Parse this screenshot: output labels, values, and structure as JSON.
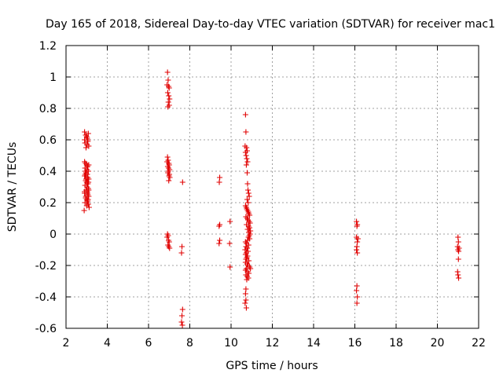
{
  "chart_data": {
    "type": "scatter",
    "title": "Day 165 of 2018, Sidereal Day-to-day VTEC variation (SDTVAR) for receiver mac1",
    "xlabel": "GPS time / hours",
    "ylabel": "SDTVAR / TECUs",
    "xlim": [
      2,
      22
    ],
    "ylim": [
      -0.6,
      1.2
    ],
    "xticks": [
      "2",
      "4",
      "6",
      "8",
      "10",
      "12",
      "14",
      "16",
      "18",
      "20",
      "22"
    ],
    "yticks": [
      "-0.6",
      "-0.4",
      "-0.2",
      "0",
      "0.2",
      "0.4",
      "0.6",
      "0.8",
      "1",
      "1.2"
    ],
    "grid": true,
    "marker": "+",
    "color": "#e00000",
    "series": [
      {
        "name": "SDTVAR",
        "points": [
          [
            2.9,
            0.65
          ],
          [
            2.95,
            0.63
          ],
          [
            3.0,
            0.62
          ],
          [
            3.05,
            0.6
          ],
          [
            2.92,
            0.58
          ],
          [
            3.02,
            0.57
          ],
          [
            3.08,
            0.64
          ],
          [
            2.97,
            0.55
          ],
          [
            3.03,
            0.61
          ],
          [
            2.9,
            0.6
          ],
          [
            3.06,
            0.59
          ],
          [
            3.1,
            0.56
          ],
          [
            2.9,
            0.46
          ],
          [
            2.95,
            0.45
          ],
          [
            3.0,
            0.44
          ],
          [
            3.05,
            0.43
          ],
          [
            3.1,
            0.44
          ],
          [
            2.92,
            0.42
          ],
          [
            3.02,
            0.41
          ],
          [
            3.08,
            0.4
          ],
          [
            2.97,
            0.39
          ],
          [
            3.03,
            0.38
          ],
          [
            2.9,
            0.37
          ],
          [
            3.06,
            0.36
          ],
          [
            3.1,
            0.35
          ],
          [
            2.95,
            0.34
          ],
          [
            3.0,
            0.33
          ],
          [
            3.05,
            0.32
          ],
          [
            2.92,
            0.31
          ],
          [
            3.02,
            0.3
          ],
          [
            3.08,
            0.29
          ],
          [
            2.97,
            0.28
          ],
          [
            3.03,
            0.27
          ],
          [
            2.9,
            0.26
          ],
          [
            3.06,
            0.25
          ],
          [
            3.1,
            0.24
          ],
          [
            2.95,
            0.23
          ],
          [
            3.0,
            0.22
          ],
          [
            3.05,
            0.21
          ],
          [
            2.92,
            0.2
          ],
          [
            3.02,
            0.2
          ],
          [
            3.08,
            0.19
          ],
          [
            2.97,
            0.35
          ],
          [
            3.03,
            0.36
          ],
          [
            2.9,
            0.27
          ],
          [
            3.06,
            0.32
          ],
          [
            3.1,
            0.28
          ],
          [
            2.93,
            0.38
          ],
          [
            3.04,
            0.26
          ],
          [
            3.07,
            0.22
          ],
          [
            2.96,
            0.24
          ],
          [
            2.88,
            0.15
          ],
          [
            3.12,
            0.17
          ],
          [
            3.0,
            0.18
          ],
          [
            2.94,
            0.4
          ],
          [
            3.09,
            0.33
          ],
          [
            6.92,
            1.03
          ],
          [
            6.95,
            0.98
          ],
          [
            6.9,
            0.95
          ],
          [
            6.97,
            0.94
          ],
          [
            7.0,
            0.93
          ],
          [
            6.93,
            0.9
          ],
          [
            6.98,
            0.88
          ],
          [
            7.02,
            0.86
          ],
          [
            6.96,
            0.84
          ],
          [
            7.0,
            0.82
          ],
          [
            6.94,
            0.81
          ],
          [
            6.92,
            0.49
          ],
          [
            6.95,
            0.47
          ],
          [
            6.9,
            0.46
          ],
          [
            6.98,
            0.45
          ],
          [
            7.0,
            0.44
          ],
          [
            6.93,
            0.43
          ],
          [
            6.97,
            0.42
          ],
          [
            7.02,
            0.41
          ],
          [
            6.96,
            0.4
          ],
          [
            6.94,
            0.39
          ],
          [
            7.01,
            0.38
          ],
          [
            6.99,
            0.37
          ],
          [
            7.03,
            0.36
          ],
          [
            6.98,
            0.34
          ],
          [
            6.92,
            0.0
          ],
          [
            6.95,
            -0.01
          ],
          [
            6.9,
            -0.02
          ],
          [
            6.97,
            -0.04
          ],
          [
            7.0,
            -0.05
          ],
          [
            6.94,
            -0.07
          ],
          [
            6.98,
            -0.08
          ],
          [
            7.02,
            -0.09
          ],
          [
            7.65,
            0.33
          ],
          [
            7.62,
            -0.08
          ],
          [
            7.6,
            -0.12
          ],
          [
            7.65,
            -0.48
          ],
          [
            7.62,
            -0.52
          ],
          [
            7.6,
            -0.56
          ],
          [
            7.64,
            -0.58
          ],
          [
            9.45,
            0.36
          ],
          [
            9.43,
            0.33
          ],
          [
            9.45,
            0.06
          ],
          [
            9.42,
            0.05
          ],
          [
            9.45,
            -0.04
          ],
          [
            9.42,
            -0.06
          ],
          [
            9.95,
            0.08
          ],
          [
            9.93,
            -0.06
          ],
          [
            9.95,
            -0.21
          ],
          [
            10.7,
            0.76
          ],
          [
            10.72,
            0.65
          ],
          [
            10.68,
            0.56
          ],
          [
            10.75,
            0.55
          ],
          [
            10.78,
            0.53
          ],
          [
            10.7,
            0.52
          ],
          [
            10.73,
            0.5
          ],
          [
            10.76,
            0.48
          ],
          [
            10.8,
            0.46
          ],
          [
            10.74,
            0.44
          ],
          [
            10.78,
            0.39
          ],
          [
            10.8,
            0.32
          ],
          [
            10.82,
            0.28
          ],
          [
            10.85,
            0.26
          ],
          [
            10.88,
            0.24
          ],
          [
            10.78,
            0.22
          ],
          [
            10.83,
            0.2
          ],
          [
            10.7,
            0.18
          ],
          [
            10.74,
            0.17
          ],
          [
            10.76,
            0.16
          ],
          [
            10.8,
            0.15
          ],
          [
            10.84,
            0.14
          ],
          [
            10.86,
            0.13
          ],
          [
            10.9,
            0.12
          ],
          [
            10.72,
            0.11
          ],
          [
            10.78,
            0.1
          ],
          [
            10.82,
            0.09
          ],
          [
            10.88,
            0.08
          ],
          [
            10.92,
            0.07
          ],
          [
            10.75,
            0.06
          ],
          [
            10.85,
            0.05
          ],
          [
            10.9,
            0.04
          ],
          [
            10.8,
            0.03
          ],
          [
            10.94,
            0.02
          ],
          [
            10.86,
            0.01
          ],
          [
            10.92,
            0.0
          ],
          [
            10.88,
            -0.01
          ],
          [
            10.84,
            -0.02
          ],
          [
            10.9,
            -0.03
          ],
          [
            10.8,
            -0.04
          ],
          [
            10.7,
            -0.05
          ],
          [
            10.75,
            -0.06
          ],
          [
            10.85,
            -0.07
          ],
          [
            10.72,
            -0.08
          ],
          [
            10.78,
            -0.09
          ],
          [
            10.68,
            -0.1
          ],
          [
            10.82,
            -0.11
          ],
          [
            10.74,
            -0.12
          ],
          [
            10.7,
            -0.13
          ],
          [
            10.8,
            -0.14
          ],
          [
            10.76,
            -0.15
          ],
          [
            10.72,
            -0.16
          ],
          [
            10.86,
            -0.17
          ],
          [
            10.7,
            -0.18
          ],
          [
            10.78,
            -0.19
          ],
          [
            10.82,
            -0.2
          ],
          [
            10.9,
            -0.21
          ],
          [
            10.74,
            -0.22
          ],
          [
            10.94,
            -0.22
          ],
          [
            10.7,
            -0.23
          ],
          [
            10.8,
            -0.24
          ],
          [
            10.86,
            -0.25
          ],
          [
            10.72,
            -0.26
          ],
          [
            10.78,
            -0.27
          ],
          [
            10.84,
            -0.28
          ],
          [
            10.76,
            -0.29
          ],
          [
            10.72,
            -0.35
          ],
          [
            10.7,
            -0.38
          ],
          [
            10.72,
            -0.42
          ],
          [
            10.68,
            -0.44
          ],
          [
            10.74,
            -0.47
          ],
          [
            16.08,
            0.08
          ],
          [
            16.12,
            0.06
          ],
          [
            16.1,
            0.05
          ],
          [
            16.08,
            -0.02
          ],
          [
            16.15,
            -0.03
          ],
          [
            16.12,
            -0.05
          ],
          [
            16.1,
            -0.08
          ],
          [
            16.08,
            -0.1
          ],
          [
            16.12,
            -0.12
          ],
          [
            16.1,
            -0.33
          ],
          [
            16.08,
            -0.36
          ],
          [
            16.12,
            -0.4
          ],
          [
            16.1,
            -0.44
          ],
          [
            21.0,
            -0.02
          ],
          [
            21.02,
            -0.05
          ],
          [
            20.98,
            -0.08
          ],
          [
            21.05,
            -0.09
          ],
          [
            21.0,
            -0.1
          ],
          [
            21.03,
            -0.11
          ],
          [
            21.02,
            -0.16
          ],
          [
            20.98,
            -0.24
          ],
          [
            21.0,
            -0.26
          ],
          [
            21.03,
            -0.28
          ]
        ]
      }
    ]
  }
}
